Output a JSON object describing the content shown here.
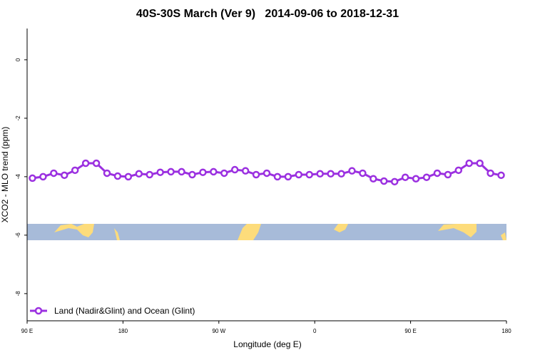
{
  "chart_data": {
    "type": "line",
    "title": "40S-30S March (Ver 9)   2014-09-06 to 2018-12-31",
    "x_label": "Longitude (deg E)",
    "y_label": "XCO2 - MLO trend (ppm)",
    "x": [
      95,
      105,
      115,
      125,
      135,
      145,
      155,
      165,
      175,
      185,
      195,
      205,
      215,
      225,
      235,
      245,
      255,
      265,
      275,
      285,
      295,
      305,
      315,
      325,
      335,
      345,
      355,
      365,
      375,
      385,
      395,
      405,
      415,
      425,
      435,
      445,
      455,
      465,
      475,
      485,
      495,
      505,
      515,
      525,
      535
    ],
    "series": [
      {
        "name": "Land (Nadir&Glint) and Ocean (Glint)",
        "color": "#9b30e0",
        "values": [
          -4.05,
          -4.0,
          -3.88,
          -3.95,
          -3.78,
          -3.54,
          -3.54,
          -3.88,
          -3.98,
          -4.0,
          -3.9,
          -3.93,
          -3.85,
          -3.83,
          -3.83,
          -3.93,
          -3.85,
          -3.83,
          -3.88,
          -3.76,
          -3.8,
          -3.93,
          -3.88,
          -4.0,
          -4.0,
          -3.93,
          -3.93,
          -3.9,
          -3.9,
          -3.9,
          -3.8,
          -3.88,
          -4.07,
          -4.15,
          -4.17,
          -4.02,
          -4.07,
          -4.02,
          -3.88,
          -3.93,
          -3.78,
          -3.54,
          -3.54,
          -3.88,
          -3.95
        ]
      }
    ],
    "xlim": [
      90,
      540
    ],
    "xticks": [
      {
        "value": 90,
        "label": "90 E"
      },
      {
        "value": 180,
        "label": "180"
      },
      {
        "value": 270,
        "label": "90 W"
      },
      {
        "value": 360,
        "label": "0"
      },
      {
        "value": 450,
        "label": "90 E"
      },
      {
        "value": 540,
        "label": "180"
      }
    ],
    "ylim": [
      -8.93,
      1.07
    ],
    "yticks": [
      0,
      -2,
      -4,
      -6,
      -8
    ],
    "legend": "bottom-left"
  }
}
